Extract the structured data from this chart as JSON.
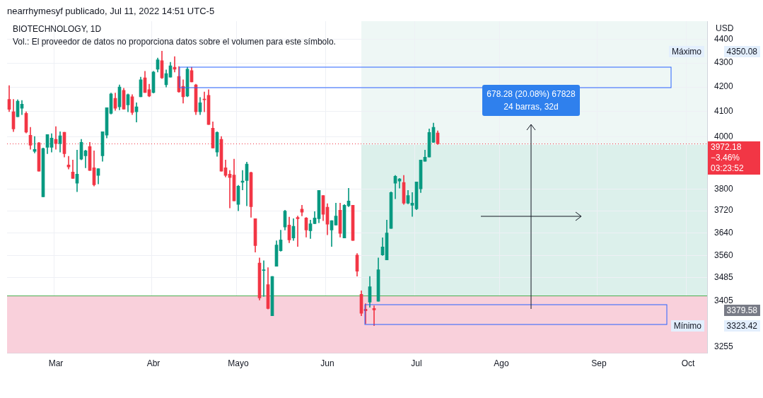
{
  "chart_data": {
    "type": "candlestick",
    "title": "BIOTECHNOLOGY, 1D",
    "subtitle": "Vol.: El proveedor de datos no proporciona datos sobre el volumen para este símbolo.",
    "ylabel": "USD",
    "categories": [
      null,
      null,
      null,
      null,
      null,
      null,
      null,
      null,
      null,
      null,
      null,
      "Mar",
      null,
      null,
      null,
      null,
      null,
      null,
      null,
      null,
      null,
      null,
      null,
      null,
      null,
      null,
      null,
      null,
      null,
      null,
      null,
      null,
      null,
      null,
      "Abr",
      null,
      null,
      null,
      null,
      null,
      null,
      null,
      null,
      null,
      null,
      null,
      null,
      null,
      null,
      null,
      null,
      null,
      null,
      null,
      "Mayo",
      null,
      null,
      null,
      null,
      null,
      null,
      null,
      null,
      null,
      null,
      null,
      null,
      null,
      null,
      null,
      null,
      null,
      null,
      null,
      null,
      "Jun",
      null,
      null,
      null,
      null,
      null,
      null,
      null,
      null,
      null,
      null,
      null,
      null,
      null,
      null,
      null,
      null,
      null,
      null,
      null,
      null,
      "Jul",
      null,
      null,
      null,
      null,
      null,
      null,
      null,
      null,
      null,
      null,
      null,
      null,
      null,
      null,
      null,
      null,
      null,
      null,
      null,
      "Ago",
      null,
      null,
      null,
      null,
      null,
      null,
      null,
      null,
      null,
      null,
      null,
      null,
      null,
      null,
      null,
      null,
      null,
      null,
      null,
      null,
      null,
      null,
      "Sep",
      null,
      null,
      null,
      null,
      null,
      null,
      null,
      null,
      null,
      null,
      null,
      null,
      null,
      null,
      null,
      null,
      null,
      null,
      null,
      null,
      "Oct",
      null,
      null,
      null,
      null
    ],
    "ohlc": [
      [
        4149,
        4206,
        4100,
        4109
      ],
      [
        4099,
        4149,
        4020,
        4031
      ],
      [
        4079,
        4148,
        4079,
        4142
      ],
      [
        4113,
        4145,
        4088,
        4130
      ],
      [
        4093,
        4099,
        4015,
        4018
      ],
      [
        4006,
        4037,
        3951,
        3967
      ],
      [
        3943,
        4001,
        3937,
        3951
      ],
      [
        3976,
        3978,
        3867,
        3867
      ],
      [
        3771,
        3956,
        3771,
        3954
      ],
      [
        3959,
        4009,
        3934,
        4009
      ],
      [
        3959,
        4012,
        3940,
        3995
      ],
      [
        3990,
        4040,
        3951,
        3973
      ],
      [
        3973,
        4020,
        3940,
        4004
      ],
      [
        4018,
        4018,
        3921,
        3934
      ],
      [
        3891,
        3924,
        3875,
        3883
      ],
      [
        3864,
        3910,
        3840,
        3840
      ],
      [
        3822,
        3948,
        3790,
        3856
      ],
      [
        3913,
        3990,
        3910,
        3978
      ],
      [
        3926,
        3948,
        3880,
        3945
      ],
      [
        3962,
        3978,
        3870,
        3870
      ],
      [
        3880,
        3945,
        3811,
        3816
      ],
      [
        3851,
        3877,
        3819,
        3877
      ],
      [
        3926,
        4020,
        3905,
        4020
      ],
      [
        4006,
        4116,
        3995,
        4116
      ],
      [
        4093,
        4175,
        4090,
        4172
      ],
      [
        4154,
        4175,
        4105,
        4113
      ],
      [
        4119,
        4209,
        4107,
        4200
      ],
      [
        4186,
        4195,
        4110,
        4110
      ],
      [
        4127,
        4172,
        4099,
        4169
      ],
      [
        4160,
        4169,
        4088,
        4096
      ],
      [
        4099,
        4136,
        4058,
        4119
      ],
      [
        4160,
        4241,
        4160,
        4230
      ],
      [
        4238,
        4265,
        4177,
        4177
      ],
      [
        4189,
        4212,
        4160,
        4163
      ],
      [
        4177,
        4265,
        4175,
        4262
      ],
      [
        4274,
        4321,
        4262,
        4314
      ],
      [
        4310,
        4350.08,
        4235,
        4238
      ],
      [
        4209,
        4271,
        4200,
        4256
      ],
      [
        4241,
        4303,
        4241,
        4288
      ],
      [
        4282,
        4327,
        4262,
        4274
      ],
      [
        4244,
        4285,
        4178,
        4180
      ],
      [
        4203,
        4230,
        4134,
        4160
      ],
      [
        4163,
        4282,
        4160,
        4274
      ],
      [
        4268,
        4282,
        4221,
        4221
      ],
      [
        4209,
        4212,
        4088,
        4099
      ],
      [
        4099,
        4157,
        4088,
        4136
      ],
      [
        4151,
        4180,
        4099,
        4148
      ],
      [
        4166,
        4189,
        4048,
        4048
      ],
      [
        4034,
        4059,
        3956,
        3956
      ],
      [
        3940,
        4020,
        3924,
        4017
      ],
      [
        3990,
        4001,
        3867,
        3867
      ],
      [
        3880,
        3910,
        3845,
        3851
      ],
      [
        3856,
        3870,
        3730,
        3843
      ],
      [
        3853,
        3913,
        3756,
        3756
      ],
      [
        3743,
        3814,
        3720,
        3811
      ],
      [
        3825,
        3870,
        3797,
        3830
      ],
      [
        3832,
        3902,
        3738,
        3894
      ],
      [
        3862,
        3864,
        3696,
        3735
      ],
      [
        3691,
        3691,
        3572,
        3595
      ],
      [
        3534,
        3552,
        3408,
        3415
      ],
      [
        3508,
        3542,
        3420,
        3511
      ],
      [
        3460,
        3518,
        3378,
        3380
      ],
      [
        3356,
        3488,
        3356,
        3488
      ],
      [
        3523,
        3612,
        3523,
        3597
      ],
      [
        3577,
        3650,
        3575,
        3615
      ],
      [
        3661,
        3722,
        3650,
        3719
      ],
      [
        3668,
        3697,
        3605,
        3615
      ],
      [
        3622,
        3691,
        3613,
        3664
      ],
      [
        3696,
        3701,
        3592,
        3691
      ],
      [
        3726,
        3740,
        3701,
        3715
      ],
      [
        3694,
        3696,
        3625,
        3650
      ],
      [
        3648,
        3686,
        3620,
        3673
      ],
      [
        3673,
        3717,
        3673,
        3694
      ],
      [
        3691,
        3795,
        3676,
        3795
      ],
      [
        3776,
        3776,
        3684,
        3707
      ],
      [
        3733,
        3746,
        3633,
        3671
      ],
      [
        3650,
        3684,
        3592,
        3684
      ],
      [
        3668,
        3748,
        3668,
        3701
      ],
      [
        3722,
        3748,
        3625,
        3638
      ],
      [
        3622,
        3743,
        3622,
        3740
      ],
      [
        3738,
        3803,
        3735,
        3756
      ],
      [
        3740,
        3740,
        3613,
        3613
      ],
      [
        3562,
        3567,
        3489,
        3506
      ],
      [
        3427,
        3439,
        3356,
        3364
      ],
      [
        3378,
        3396,
        3330,
        3372
      ],
      [
        3401,
        3488,
        3384,
        3453
      ],
      [
        3380,
        3389,
        3323.42,
        3375
      ],
      [
        3404,
        3552,
        3404,
        3511
      ],
      [
        3562,
        3623,
        3560,
        3590
      ],
      [
        3545,
        3686,
        3545,
        3640
      ],
      [
        3656,
        3790,
        3656,
        3787
      ],
      [
        3822,
        3851,
        3764,
        3848
      ],
      [
        3830,
        3840,
        3803,
        3838
      ],
      [
        3825,
        3851,
        3743,
        3748
      ],
      [
        3748,
        3795,
        3745,
        3776
      ],
      [
        3740,
        3787,
        3699,
        3748
      ],
      [
        3727,
        3827,
        3724,
        3827
      ],
      [
        3801,
        3910,
        3787,
        3910
      ],
      [
        3905,
        3948,
        3905,
        3921
      ],
      [
        3921,
        4031,
        3921,
        4017
      ],
      [
        3978,
        4054,
        3978,
        4037
      ],
      [
        4015,
        4023,
        3970,
        3972.18
      ],
      null,
      null,
      null,
      null,
      null,
      null,
      null,
      null,
      null,
      null,
      null,
      null,
      null,
      null,
      null,
      null,
      null,
      null,
      null,
      null,
      null,
      null,
      null,
      null,
      null,
      null,
      null,
      null,
      null,
      null,
      null,
      null,
      null,
      null,
      null,
      null,
      null,
      null,
      null,
      null,
      null,
      null,
      null,
      null,
      null,
      null,
      null,
      null,
      null,
      null,
      null,
      null,
      null,
      null,
      null,
      null,
      null,
      null,
      null,
      null,
      null,
      null,
      null
    ],
    "ylim": [
      3235,
      4480
    ],
    "yticks": [
      3255,
      3405,
      3485,
      3560,
      3640,
      3720,
      3800,
      4000,
      4100,
      4200,
      4300,
      4400
    ],
    "log": true,
    "grid": true,
    "ref_lines": [
      {
        "axis": "y",
        "value": 3972.18,
        "label": "3972.18",
        "color": "#f23645",
        "line_style": "dotted"
      },
      {
        "axis": "y",
        "value": 3422,
        "color": "#4caf50",
        "line_style": "solid"
      }
    ],
    "bands": [
      {
        "axis": "y",
        "from": 3235,
        "to": 3422,
        "color": "#f9d0db"
      }
    ],
    "annotations": [
      "nearrhymesyf publicado, Jul 11, 2022 14:51 UTC-5",
      "678.28 (20.08%) 67828",
      "24 barras, 32d",
      "Máximo",
      "4350.08",
      "Mínimo",
      "3323.42",
      "3379.58",
      "−3.46%",
      "03:23:52"
    ]
  }
}
